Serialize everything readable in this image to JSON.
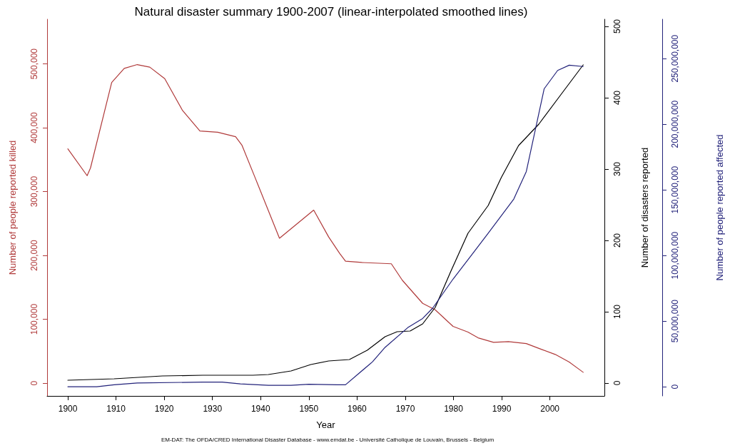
{
  "chart_data": {
    "type": "line",
    "title": "Natural disaster summary 1900-2007 (linear-interpolated smoothed lines)",
    "xlabel": "Year",
    "ylabel": "Number of people reported killed",
    "y2label": "Number of disasters reported",
    "y3label": "Number of people reported affected",
    "annotations": [
      "EM-DAT: The OFDA/CRED International Disaster Database - www.emdat.be - Université Catholique de Louvain, Brussels - Belgium"
    ],
    "xlim": [
      1895.7,
      2011.3
    ],
    "xticks": [
      1900,
      1910,
      1920,
      1930,
      1940,
      1950,
      1960,
      1970,
      1980,
      1990,
      2000
    ],
    "ylim": [
      -20000,
      570000
    ],
    "yticks": [
      {
        "value": 0,
        "label": "0"
      },
      {
        "value": 100000,
        "label": "100,000"
      },
      {
        "value": 200000,
        "label": "200,000"
      },
      {
        "value": 300000,
        "label": "300,000"
      },
      {
        "value": 400000,
        "label": "400,000"
      },
      {
        "value": 500000,
        "label": "500,000"
      }
    ],
    "y2lim": [
      -18,
      510
    ],
    "y2ticks": [
      0,
      100,
      200,
      300,
      400,
      500
    ],
    "y3lim": [
      -7000000,
      280000000
    ],
    "y3ticks": [
      {
        "value": 0,
        "label": "0"
      },
      {
        "value": 50000000,
        "label": "50,000,000"
      },
      {
        "value": 100000000,
        "label": "100,000,000"
      },
      {
        "value": 150000000,
        "label": "150,000,000"
      },
      {
        "value": 200000000,
        "label": "200,000,000"
      },
      {
        "value": 250000000,
        "label": "250,000,000"
      }
    ],
    "grid": false,
    "marker": "none",
    "line_style": "solid",
    "series": [
      {
        "color": "#b03a3a",
        "axis": "y",
        "x": [
          1900,
          1904,
          1904.7,
          1909.1,
          1911.7,
          1914.4,
          1917,
          1920.1,
          1923.8,
          1927.4,
          1931.1,
          1934.8,
          1936.1,
          1939,
          1943.9,
          1951,
          1954.1,
          1956.4,
          1957.6,
          1961,
          1967.1,
          1969.4,
          1973.6,
          1976.2,
          1979.9,
          1983,
          1985.1,
          1988.3,
          1991.4,
          1995.1,
          1998.2,
          2001.1,
          2004,
          2006.9
        ],
        "values": [
          367000,
          325000,
          337000,
          471000,
          493000,
          499000,
          495000,
          477000,
          427000,
          395000,
          393000,
          386000,
          373000,
          319000,
          227000,
          271000,
          229000,
          203000,
          191000,
          189000,
          187000,
          161000,
          125000,
          115000,
          89000,
          80000,
          71000,
          64000,
          65000,
          62000,
          53000,
          45000,
          33000,
          17000
        ]
      },
      {
        "color": "#000000",
        "axis": "y2",
        "x": [
          1900,
          1909.6,
          1919.6,
          1928,
          1938.4,
          1941.6,
          1946.3,
          1950.4,
          1954.1,
          1958.4,
          1962.1,
          1965.8,
          1968.3,
          1971,
          1973.6,
          1976.2,
          1979.4,
          1983,
          1987.2,
          1989.9,
          1993.5,
          1997.7,
          2002.9,
          2006.9
        ],
        "values": [
          4,
          6,
          10,
          11,
          11,
          12,
          17,
          26,
          31,
          33,
          46,
          65,
          72,
          73,
          83,
          106,
          156,
          210,
          249,
          288,
          333,
          363,
          410,
          446
        ]
      },
      {
        "color": "#22227a",
        "axis": "y3",
        "x": [
          1900,
          1906,
          1909.6,
          1914.4,
          1928,
          1932,
          1935.8,
          1941.6,
          1946.3,
          1950,
          1955.8,
          1957.6,
          1963.2,
          1965.8,
          1970.5,
          1973.6,
          1975.7,
          1979.9,
          1984.1,
          1987.2,
          1992.5,
          1995.1,
          1998.8,
          2001.6,
          2004,
          2006.9
        ],
        "values": [
          0,
          0,
          1500000,
          2900000,
          3500000,
          3500000,
          2200000,
          1100000,
          1100000,
          1900000,
          1500000,
          1500000,
          19000000,
          30000000,
          45000000,
          52000000,
          60000000,
          82000000,
          102000000,
          117000000,
          143000000,
          164000000,
          227000000,
          241000000,
          245000000,
          244000000
        ]
      }
    ]
  }
}
